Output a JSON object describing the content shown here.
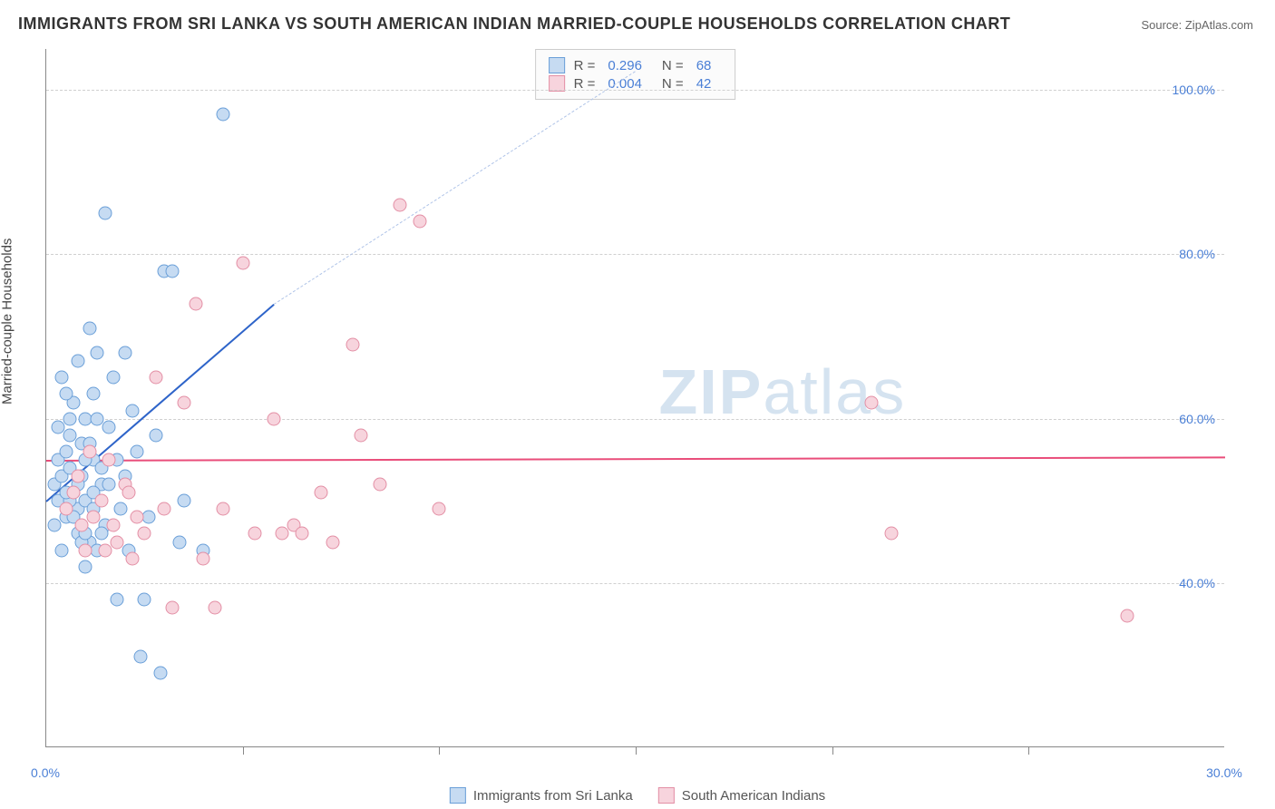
{
  "title": "IMMIGRANTS FROM SRI LANKA VS SOUTH AMERICAN INDIAN MARRIED-COUPLE HOUSEHOLDS CORRELATION CHART",
  "source_label": "Source: ZipAtlas.com",
  "ylabel": "Married-couple Households",
  "watermark_bold": "ZIP",
  "watermark_light": "atlas",
  "watermark_color": "#d5e3f0",
  "chart": {
    "type": "scatter",
    "xlim": [
      0,
      30
    ],
    "ylim": [
      20,
      105
    ],
    "x_ticks": [
      0.0,
      30.0
    ],
    "x_tick_labels": [
      "0.0%",
      "30.0%"
    ],
    "x_minor_ticks": [
      5,
      10,
      15,
      20,
      25
    ],
    "y_gridlines": [
      40.0,
      60.0,
      80.0,
      100.0
    ],
    "y_tick_labels": [
      "40.0%",
      "60.0%",
      "80.0%",
      "100.0%"
    ],
    "grid_color": "#d0d0d0",
    "background_color": "#ffffff",
    "axis_color": "#888888",
    "point_radius": 7.5,
    "series": [
      {
        "name": "Immigrants from Sri Lanka",
        "fill": "#c6dbf2",
        "stroke": "#6a9fd8",
        "line_color": "#2e64c9",
        "R": "0.296",
        "N": "68",
        "trend_x1": 0.0,
        "trend_y1": 50.0,
        "trend_x2": 5.8,
        "trend_y2": 74.0,
        "points": [
          [
            0.2,
            52
          ],
          [
            0.3,
            55
          ],
          [
            0.3,
            50
          ],
          [
            0.4,
            53
          ],
          [
            0.5,
            56
          ],
          [
            0.5,
            48
          ],
          [
            0.6,
            54
          ],
          [
            0.6,
            58
          ],
          [
            0.7,
            51
          ],
          [
            0.7,
            62
          ],
          [
            0.8,
            49
          ],
          [
            0.8,
            46
          ],
          [
            0.9,
            57
          ],
          [
            0.9,
            53
          ],
          [
            1.0,
            60
          ],
          [
            1.0,
            50
          ],
          [
            1.1,
            45
          ],
          [
            1.1,
            71
          ],
          [
            1.2,
            55
          ],
          [
            1.2,
            63
          ],
          [
            1.3,
            44
          ],
          [
            1.3,
            68
          ],
          [
            1.4,
            52
          ],
          [
            1.5,
            47
          ],
          [
            1.5,
            85
          ],
          [
            1.6,
            59
          ],
          [
            1.7,
            65
          ],
          [
            1.8,
            38
          ],
          [
            1.9,
            49
          ],
          [
            2.0,
            53
          ],
          [
            2.0,
            68
          ],
          [
            2.1,
            44
          ],
          [
            2.2,
            61
          ],
          [
            2.3,
            56
          ],
          [
            2.4,
            31
          ],
          [
            2.5,
            38
          ],
          [
            2.6,
            48
          ],
          [
            2.8,
            58
          ],
          [
            2.9,
            29
          ],
          [
            3.0,
            78
          ],
          [
            3.2,
            78
          ],
          [
            3.4,
            45
          ],
          [
            3.5,
            50
          ],
          [
            4.0,
            44
          ],
          [
            4.5,
            97
          ],
          [
            1.0,
            42
          ],
          [
            0.4,
            65
          ],
          [
            0.6,
            60
          ],
          [
            0.8,
            67
          ],
          [
            1.0,
            55
          ],
          [
            1.2,
            51
          ],
          [
            0.3,
            59
          ],
          [
            0.5,
            63
          ],
          [
            0.7,
            48
          ],
          [
            0.9,
            45
          ],
          [
            1.1,
            57
          ],
          [
            1.3,
            60
          ],
          [
            1.4,
            46
          ],
          [
            1.6,
            52
          ],
          [
            1.8,
            55
          ],
          [
            0.2,
            47
          ],
          [
            0.4,
            44
          ],
          [
            0.6,
            50
          ],
          [
            0.8,
            52
          ],
          [
            1.0,
            46
          ],
          [
            1.2,
            49
          ],
          [
            1.4,
            54
          ],
          [
            0.5,
            51
          ]
        ]
      },
      {
        "name": "South American Indians",
        "fill": "#f7d4dd",
        "stroke": "#e38fa5",
        "line_color": "#e94d7a",
        "R": "0.004",
        "N": "42",
        "trend_x1": 0.0,
        "trend_y1": 55.0,
        "trend_x2": 30.0,
        "trend_y2": 55.4,
        "points": [
          [
            0.5,
            49
          ],
          [
            0.7,
            51
          ],
          [
            0.9,
            47
          ],
          [
            1.0,
            44
          ],
          [
            1.2,
            48
          ],
          [
            1.4,
            50
          ],
          [
            1.6,
            55
          ],
          [
            1.8,
            45
          ],
          [
            2.0,
            52
          ],
          [
            2.2,
            43
          ],
          [
            2.5,
            46
          ],
          [
            2.8,
            65
          ],
          [
            3.0,
            49
          ],
          [
            3.2,
            37
          ],
          [
            3.5,
            62
          ],
          [
            3.8,
            74
          ],
          [
            4.0,
            43
          ],
          [
            4.3,
            37
          ],
          [
            4.5,
            49
          ],
          [
            5.0,
            79
          ],
          [
            5.3,
            46
          ],
          [
            5.8,
            60
          ],
          [
            6.0,
            46
          ],
          [
            6.3,
            47
          ],
          [
            6.5,
            46
          ],
          [
            7.0,
            51
          ],
          [
            7.3,
            45
          ],
          [
            7.8,
            69
          ],
          [
            8.0,
            58
          ],
          [
            8.5,
            52
          ],
          [
            9.0,
            86
          ],
          [
            9.5,
            84
          ],
          [
            10.0,
            49
          ],
          [
            21.5,
            46
          ],
          [
            27.5,
            36
          ],
          [
            21.0,
            62
          ],
          [
            1.5,
            44
          ],
          [
            2.3,
            48
          ],
          [
            0.8,
            53
          ],
          [
            1.1,
            56
          ],
          [
            1.7,
            47
          ],
          [
            2.1,
            51
          ]
        ]
      }
    ]
  },
  "legend": {
    "r_prefix": "R = ",
    "n_prefix": "N = "
  },
  "bottom_legend": [
    "Immigrants from Sri Lanka",
    "South American Indians"
  ]
}
